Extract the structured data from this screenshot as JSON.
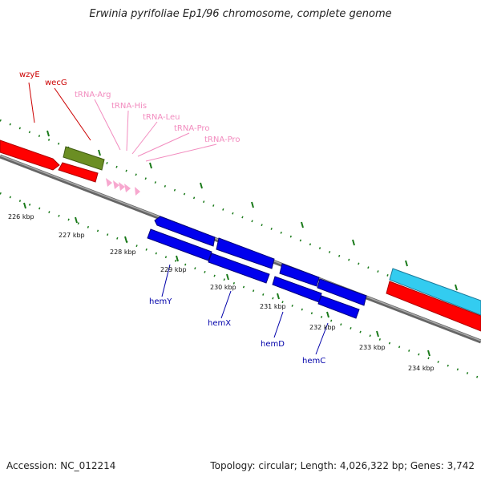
{
  "title": "Erwinia pyrifoliae Ep1/96 chromosome, complete genome",
  "footer": {
    "accession": "Accession: NC_012214",
    "info": "Topology: circular; Length: 4,026,322 bp; Genes: 3,742"
  },
  "scale_labels": [
    "226 kbp",
    "227 kbp",
    "228 kbp",
    "229 kbp",
    "230 kbp",
    "231 kbp",
    "232 kbp",
    "233 kbp",
    "234 kbp"
  ],
  "gene_labels": [
    {
      "name": "wzyE",
      "color": "#cc0000"
    },
    {
      "name": "wecG",
      "color": "#cc0000"
    },
    {
      "name": "tRNA-Arg",
      "color": "#f28cbf"
    },
    {
      "name": "tRNA-His",
      "color": "#f28cbf"
    },
    {
      "name": "tRNA-Leu",
      "color": "#f28cbf"
    },
    {
      "name": "tRNA-Pro",
      "color": "#f28cbf"
    },
    {
      "name": "tRNA-Pro",
      "color": "#f28cbf"
    },
    {
      "name": "hemY",
      "color": "#0000aa"
    },
    {
      "name": "hemX",
      "color": "#0000aa"
    },
    {
      "name": "hemD",
      "color": "#0000aa"
    },
    {
      "name": "hemC",
      "color": "#0000aa"
    }
  ],
  "colors": {
    "red_genes": "#ff0000",
    "olive_gene": "#6b8e23",
    "trna": "#f7a8cf",
    "blue_genes": "#0000ee",
    "cyan_gene": "#33ccf0",
    "backbone": "#888888",
    "ticks": "#1a7a1a"
  }
}
